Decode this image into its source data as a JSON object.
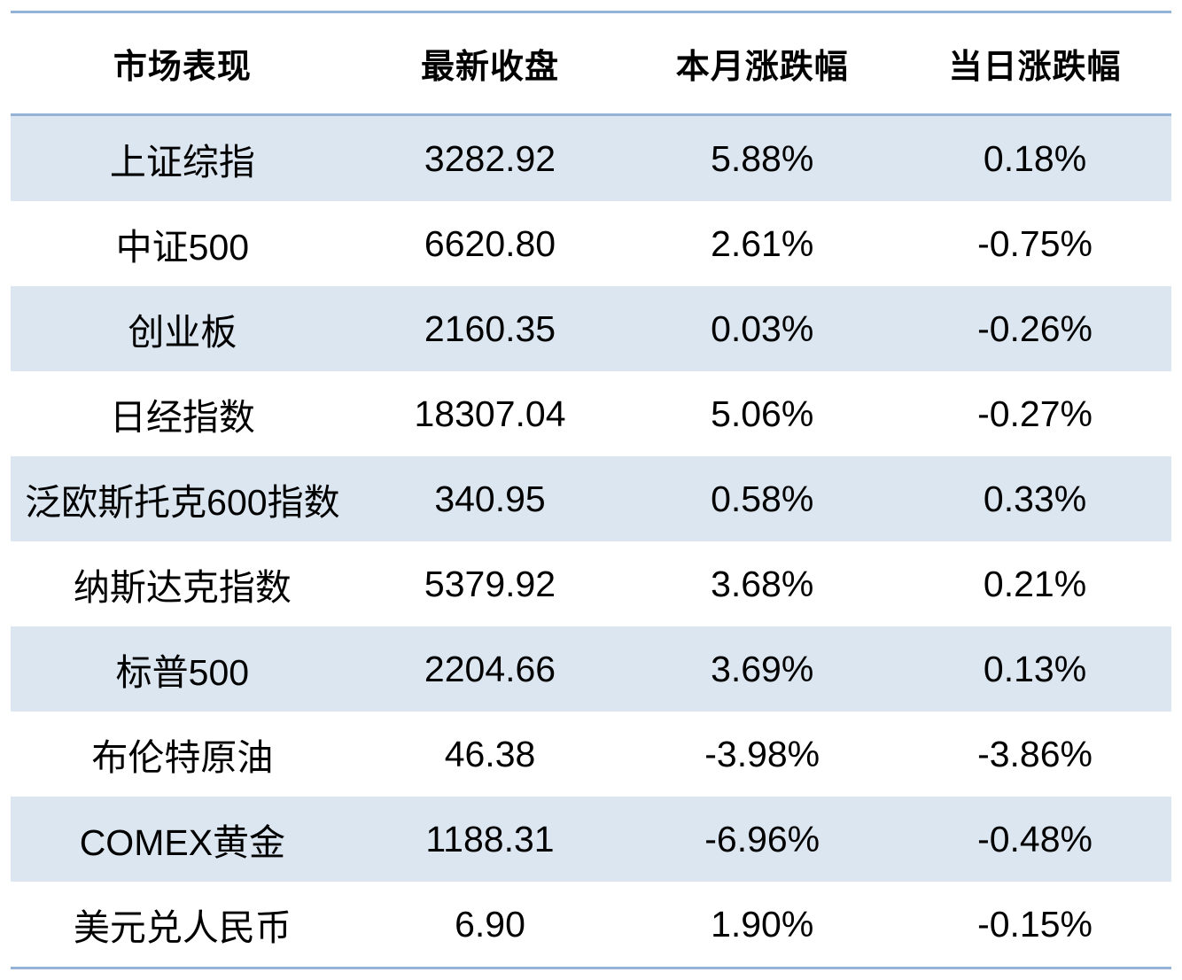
{
  "table": {
    "headers": [
      "市场表现",
      "最新收盘",
      "本月涨跌幅",
      "当日涨跌幅"
    ],
    "rows": [
      {
        "name": "上证综指",
        "close": "3282.92",
        "month_change": "5.88%",
        "day_change": "0.18%"
      },
      {
        "name": "中证500",
        "close": "6620.80",
        "month_change": "2.61%",
        "day_change": "-0.75%"
      },
      {
        "name": "创业板",
        "close": "2160.35",
        "month_change": "0.03%",
        "day_change": "-0.26%"
      },
      {
        "name": "日经指数",
        "close": "18307.04",
        "month_change": "5.06%",
        "day_change": "-0.27%"
      },
      {
        "name": "泛欧斯托克600指数",
        "close": "340.95",
        "month_change": "0.58%",
        "day_change": "0.33%"
      },
      {
        "name": "纳斯达克指数",
        "close": "5379.92",
        "month_change": "3.68%",
        "day_change": "0.21%"
      },
      {
        "name": "标普500",
        "close": "2204.66",
        "month_change": "3.69%",
        "day_change": "0.13%"
      },
      {
        "name": "布伦特原油",
        "close": "46.38",
        "month_change": "-3.98%",
        "day_change": "-3.86%"
      },
      {
        "name": "COMEX黄金",
        "close": "1188.31",
        "month_change": "-6.96%",
        "day_change": "-0.48%"
      },
      {
        "name": "美元兑人民币",
        "close": "6.90",
        "month_change": "1.90%",
        "day_change": "-0.15%"
      }
    ]
  },
  "colors": {
    "stripe_row_background": "#dce6f1",
    "border_line": "#95b3d7",
    "text": "#000000",
    "plain_row_background": "#ffffff"
  },
  "chart_data": {
    "type": "table",
    "title": "",
    "columns": [
      "市场表现",
      "最新收盘",
      "本月涨跌幅",
      "当日涨跌幅"
    ],
    "rows": [
      [
        "上证综指",
        3282.92,
        "5.88%",
        "0.18%"
      ],
      [
        "中证500",
        6620.8,
        "2.61%",
        "-0.75%"
      ],
      [
        "创业板",
        2160.35,
        "0.03%",
        "-0.26%"
      ],
      [
        "日经指数",
        18307.04,
        "5.06%",
        "-0.27%"
      ],
      [
        "泛欧斯托克600指数",
        340.95,
        "0.58%",
        "0.33%"
      ],
      [
        "纳斯达克指数",
        5379.92,
        "3.68%",
        "0.21%"
      ],
      [
        "标普500",
        2204.66,
        "3.69%",
        "0.13%"
      ],
      [
        "布伦特原油",
        46.38,
        "-3.98%",
        "-3.86%"
      ],
      [
        "COMEX黄金",
        1188.31,
        "-6.96%",
        "-0.48%"
      ],
      [
        "美元兑人民币",
        6.9,
        "1.90%",
        "-0.15%"
      ]
    ],
    "layout": {
      "banded_rows": true,
      "banded_color": "#dce6f1",
      "border_top_bottom_and_header_rule": "#95b3d7",
      "cell_alignment": "center",
      "header_bold": true
    }
  }
}
